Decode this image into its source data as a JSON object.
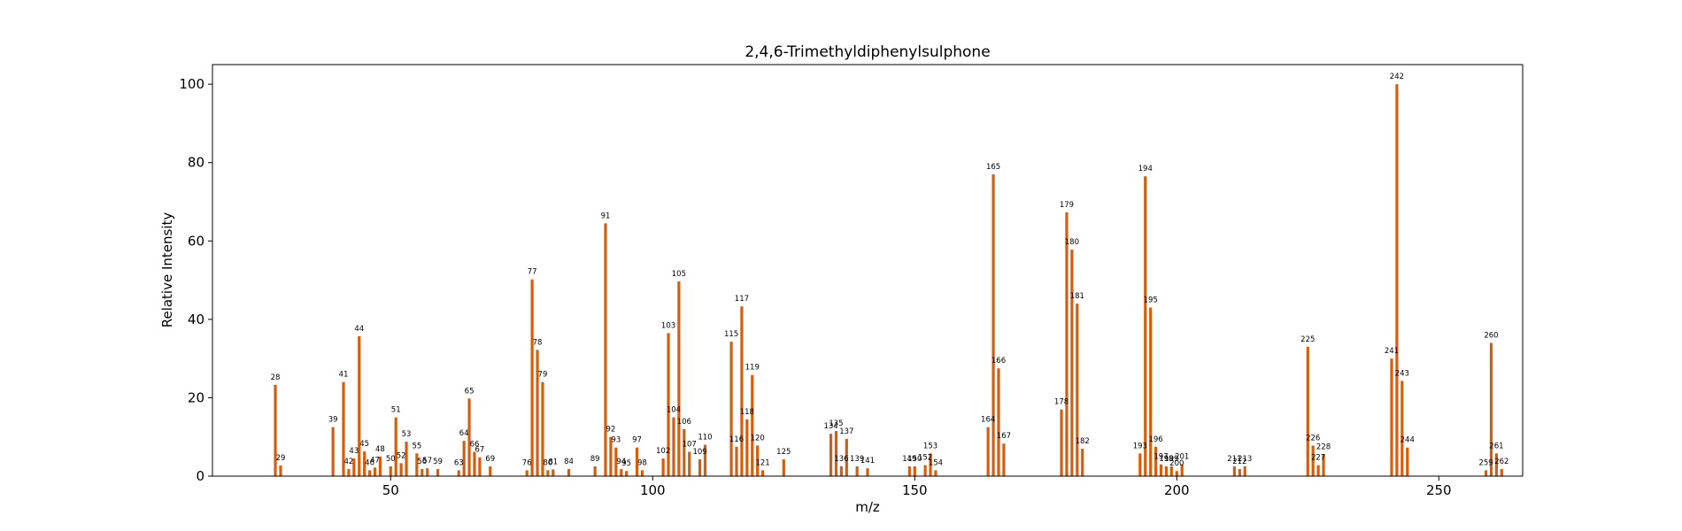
{
  "chart_data": {
    "type": "bar",
    "title": "2,4,6-Trimethyldiphenylsulphone",
    "xlabel": "m/z",
    "ylabel": "Relative Intensity",
    "xlim": [
      16,
      266
    ],
    "ylim": [
      0,
      105
    ],
    "xticks": [
      50,
      100,
      150,
      200,
      250
    ],
    "yticks": [
      0,
      20,
      40,
      60,
      80,
      100
    ],
    "bar_color": "#d45e0f",
    "grid": false,
    "peaks": [
      {
        "x": 28,
        "y": 23.3
      },
      {
        "x": 29,
        "y": 2.7
      },
      {
        "x": 39,
        "y": 12.5
      },
      {
        "x": 41,
        "y": 24.0
      },
      {
        "x": 42,
        "y": 1.8
      },
      {
        "x": 43,
        "y": 4.5
      },
      {
        "x": 44,
        "y": 35.7
      },
      {
        "x": 45,
        "y": 6.3
      },
      {
        "x": 46,
        "y": 1.5
      },
      {
        "x": 47,
        "y": 2.2
      },
      {
        "x": 48,
        "y": 5.0
      },
      {
        "x": 50,
        "y": 2.5
      },
      {
        "x": 51,
        "y": 15.0
      },
      {
        "x": 52,
        "y": 3.3
      },
      {
        "x": 53,
        "y": 8.8
      },
      {
        "x": 55,
        "y": 5.8
      },
      {
        "x": 56,
        "y": 1.8
      },
      {
        "x": 57,
        "y": 2.0
      },
      {
        "x": 59,
        "y": 1.8
      },
      {
        "x": 63,
        "y": 1.5
      },
      {
        "x": 64,
        "y": 9.0
      },
      {
        "x": 65,
        "y": 19.8
      },
      {
        "x": 66,
        "y": 6.2
      },
      {
        "x": 67,
        "y": 4.8
      },
      {
        "x": 69,
        "y": 2.5
      },
      {
        "x": 76,
        "y": 1.5
      },
      {
        "x": 77,
        "y": 50.2
      },
      {
        "x": 78,
        "y": 32.2
      },
      {
        "x": 79,
        "y": 24.0
      },
      {
        "x": 80,
        "y": 1.5
      },
      {
        "x": 81,
        "y": 1.7
      },
      {
        "x": 84,
        "y": 1.8
      },
      {
        "x": 89,
        "y": 2.5
      },
      {
        "x": 91,
        "y": 64.5
      },
      {
        "x": 92,
        "y": 10.0
      },
      {
        "x": 93,
        "y": 7.3
      },
      {
        "x": 94,
        "y": 1.8
      },
      {
        "x": 95,
        "y": 1.3
      },
      {
        "x": 97,
        "y": 7.3
      },
      {
        "x": 98,
        "y": 1.5
      },
      {
        "x": 102,
        "y": 4.5
      },
      {
        "x": 103,
        "y": 36.5
      },
      {
        "x": 104,
        "y": 15.0
      },
      {
        "x": 105,
        "y": 49.7
      },
      {
        "x": 106,
        "y": 12.0
      },
      {
        "x": 107,
        "y": 6.2
      },
      {
        "x": 109,
        "y": 4.3
      },
      {
        "x": 110,
        "y": 8.0
      },
      {
        "x": 115,
        "y": 34.3
      },
      {
        "x": 116,
        "y": 7.5
      },
      {
        "x": 117,
        "y": 43.3
      },
      {
        "x": 118,
        "y": 14.5
      },
      {
        "x": 119,
        "y": 25.8
      },
      {
        "x": 120,
        "y": 7.8
      },
      {
        "x": 121,
        "y": 1.5
      },
      {
        "x": 125,
        "y": 4.3
      },
      {
        "x": 134,
        "y": 10.8
      },
      {
        "x": 135,
        "y": 11.5
      },
      {
        "x": 136,
        "y": 2.5
      },
      {
        "x": 137,
        "y": 9.5
      },
      {
        "x": 139,
        "y": 2.5
      },
      {
        "x": 141,
        "y": 2.0
      },
      {
        "x": 149,
        "y": 2.5
      },
      {
        "x": 150,
        "y": 2.5
      },
      {
        "x": 152,
        "y": 2.8
      },
      {
        "x": 153,
        "y": 5.8
      },
      {
        "x": 154,
        "y": 1.5
      },
      {
        "x": 164,
        "y": 12.5
      },
      {
        "x": 165,
        "y": 77.0
      },
      {
        "x": 166,
        "y": 27.5
      },
      {
        "x": 167,
        "y": 8.3
      },
      {
        "x": 178,
        "y": 17.0
      },
      {
        "x": 179,
        "y": 67.3
      },
      {
        "x": 180,
        "y": 57.8
      },
      {
        "x": 181,
        "y": 44.0
      },
      {
        "x": 182,
        "y": 7.0
      },
      {
        "x": 193,
        "y": 5.8
      },
      {
        "x": 194,
        "y": 76.5
      },
      {
        "x": 195,
        "y": 43.0
      },
      {
        "x": 196,
        "y": 7.5
      },
      {
        "x": 197,
        "y": 3.0
      },
      {
        "x": 198,
        "y": 2.5
      },
      {
        "x": 199,
        "y": 2.5
      },
      {
        "x": 200,
        "y": 1.3
      },
      {
        "x": 201,
        "y": 3.0
      },
      {
        "x": 211,
        "y": 2.5
      },
      {
        "x": 212,
        "y": 1.8
      },
      {
        "x": 213,
        "y": 2.5
      },
      {
        "x": 225,
        "y": 33.0
      },
      {
        "x": 226,
        "y": 7.8
      },
      {
        "x": 227,
        "y": 2.8
      },
      {
        "x": 228,
        "y": 5.5
      },
      {
        "x": 241,
        "y": 30.0
      },
      {
        "x": 242,
        "y": 100.0
      },
      {
        "x": 243,
        "y": 24.3
      },
      {
        "x": 244,
        "y": 7.3
      },
      {
        "x": 259,
        "y": 1.5
      },
      {
        "x": 260,
        "y": 34.0
      },
      {
        "x": 261,
        "y": 5.8
      },
      {
        "x": 262,
        "y": 1.8
      }
    ]
  }
}
